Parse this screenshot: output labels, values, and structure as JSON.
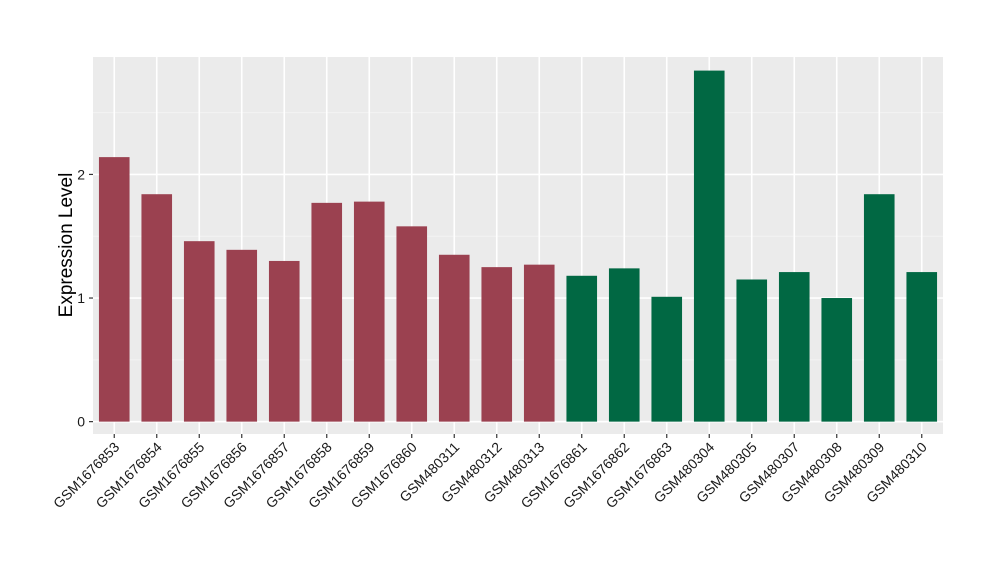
{
  "chart_data": {
    "type": "bar",
    "ylabel": "Expression Level",
    "xlabel": "",
    "ylim": [
      -0.1,
      2.95
    ],
    "yticks": [
      0,
      1,
      2
    ],
    "grid": true,
    "categories": [
      "GSM1676853",
      "GSM1676854",
      "GSM1676855",
      "GSM1676856",
      "GSM1676857",
      "GSM1676858",
      "GSM1676859",
      "GSM1676860",
      "GSM480311",
      "GSM480312",
      "GSM480313",
      "GSM1676861",
      "GSM1676862",
      "GSM1676863",
      "GSM480304",
      "GSM480305",
      "GSM480307",
      "GSM480308",
      "GSM480309",
      "GSM480310"
    ],
    "values": [
      2.14,
      1.84,
      1.46,
      1.39,
      1.3,
      1.77,
      1.78,
      1.58,
      1.35,
      1.25,
      1.27,
      1.18,
      1.24,
      1.01,
      2.84,
      1.15,
      1.21,
      1.0,
      1.84,
      1.21
    ],
    "groups": [
      {
        "color": "#9b4150",
        "count": 11
      },
      {
        "color": "#016843",
        "count": 9
      }
    ],
    "colors": {
      "panel_background": "#ebebeb",
      "grid_major": "#ffffff",
      "grid_minor": "#f3f3f3",
      "axis_text": "#1a1a1a"
    }
  }
}
